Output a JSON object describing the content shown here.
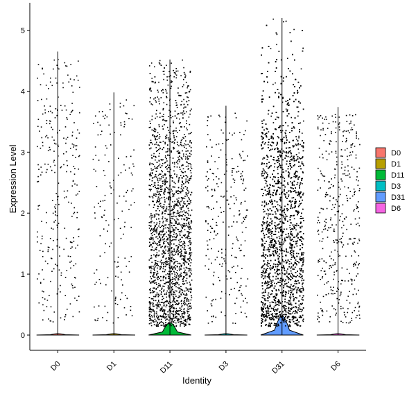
{
  "chart_data": {
    "type": "violin",
    "xlabel": "Identity",
    "ylabel": "Expression Level",
    "ylim": [
      -0.25,
      5.45
    ],
    "yticks": [
      "0",
      "1",
      "2",
      "3",
      "4",
      "5"
    ],
    "categories": [
      "D0",
      "D1",
      "D11",
      "D3",
      "D31",
      "D6"
    ],
    "legend": {
      "position": "right",
      "entries": [
        "D0",
        "D1",
        "D11",
        "D3",
        "D31",
        "D6"
      ]
    },
    "colors": {
      "D0": "#F8766D",
      "D1": "#B79F00",
      "D11": "#00BA38",
      "D3": "#00BFC4",
      "D31": "#619CFF",
      "D6": "#F564E3"
    },
    "series": [
      {
        "name": "D0",
        "max": 4.65,
        "nonzero_points": 300,
        "violin_peak_width": 0.02
      },
      {
        "name": "D1",
        "max": 3.98,
        "nonzero_points": 160,
        "violin_peak_width": 0.02
      },
      {
        "name": "D11",
        "max": 4.52,
        "nonzero_points": 2600,
        "violin_peak_width": 0.1
      },
      {
        "name": "D3",
        "max": 3.76,
        "nonzero_points": 260,
        "violin_peak_width": 0.02
      },
      {
        "name": "D31",
        "max": 5.2,
        "nonzero_points": 5200,
        "violin_peak_width": 0.27
      },
      {
        "name": "D6",
        "max": 3.74,
        "nonzero_points": 420,
        "violin_peak_width": 0.02
      }
    ],
    "grid": false,
    "jitter_points": true
  }
}
